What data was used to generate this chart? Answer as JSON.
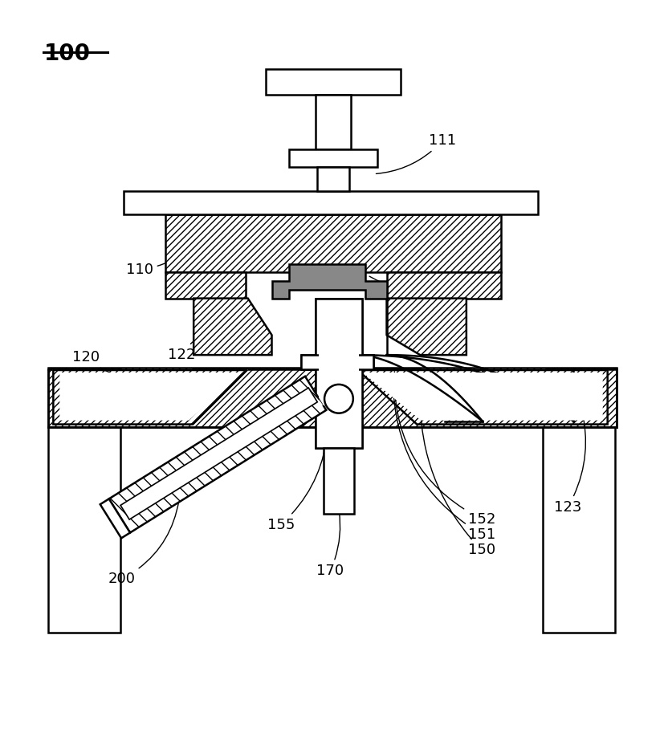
{
  "bg_color": "#ffffff",
  "line_color": "#000000",
  "gray_fill": "#888888",
  "figsize": [
    8.28,
    9.23
  ],
  "dpi": 100,
  "lw": 1.8,
  "lw_thin": 1.2,
  "fs": 13
}
